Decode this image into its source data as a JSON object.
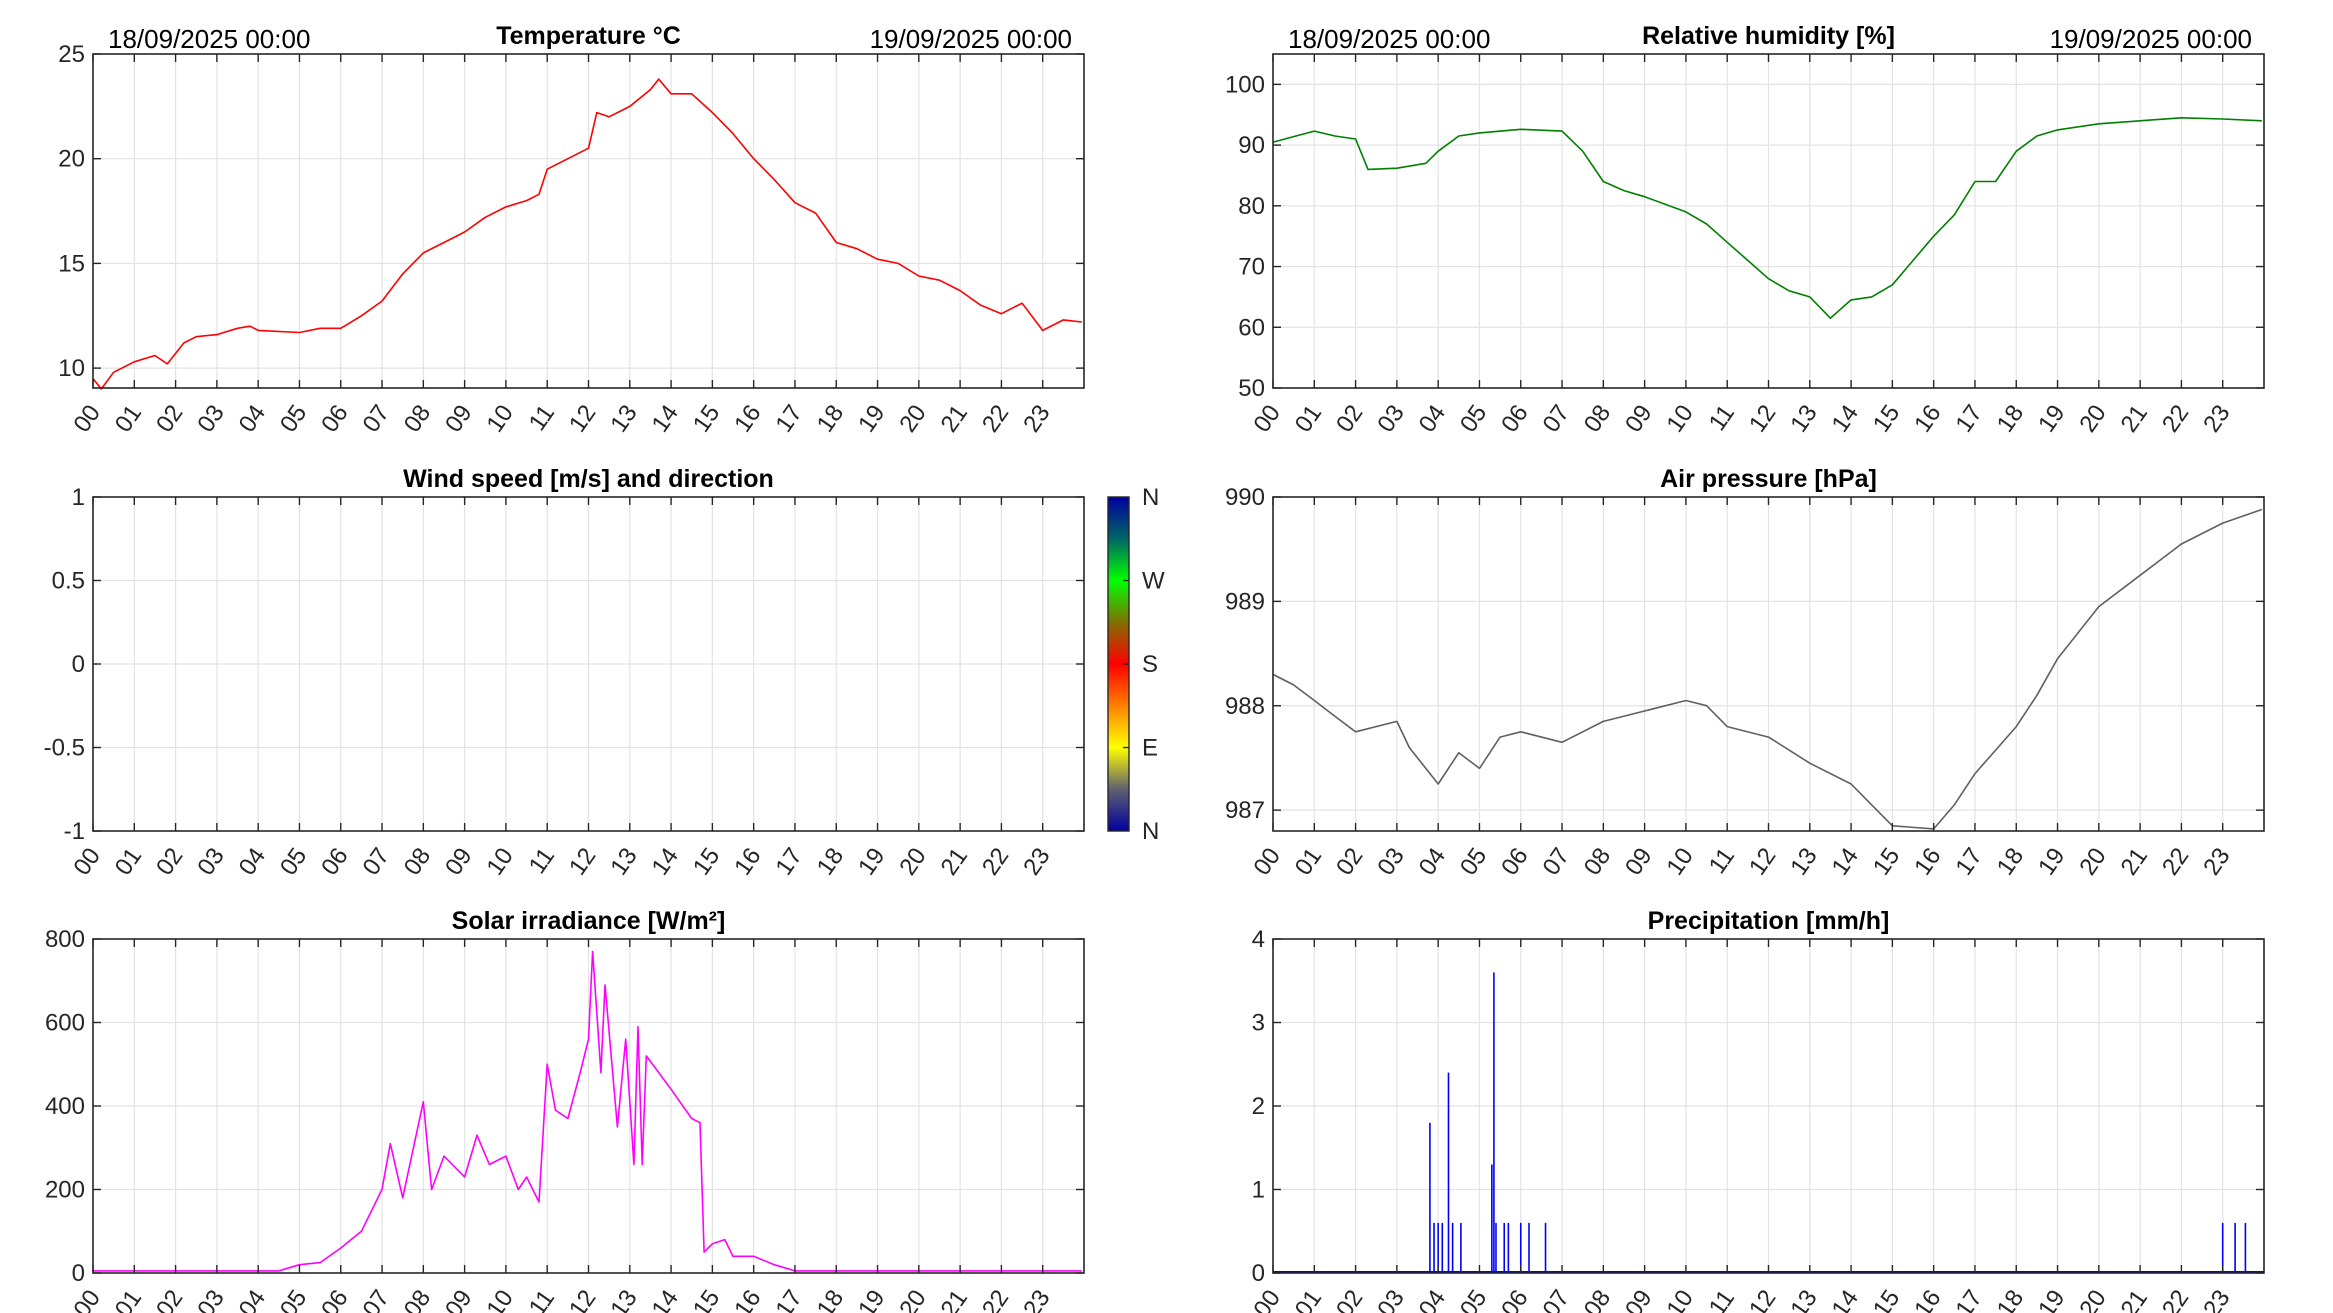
{
  "chart_data": [
    {
      "id": "temperature",
      "type": "line",
      "title": "Temperature °C",
      "date_start": "18/09/2025 00:00",
      "date_end": "19/09/2025 00:00",
      "color": "#ff0000",
      "xlim": [
        0,
        24
      ],
      "ylim": [
        9.05,
        25
      ],
      "yticks": [
        10,
        15,
        20,
        25
      ],
      "x": [
        0,
        0.2,
        0.5,
        1,
        1.5,
        1.8,
        2.2,
        2.5,
        3,
        3.5,
        3.8,
        4,
        5,
        5.5,
        6,
        6.5,
        7,
        7.5,
        8,
        8.5,
        9,
        9.5,
        10,
        10.5,
        10.8,
        11,
        11.5,
        12,
        12.2,
        12.5,
        13,
        13.5,
        13.7,
        14,
        14.5,
        15,
        15.5,
        16,
        16.5,
        17,
        17.5,
        18,
        18.5,
        19,
        19.5,
        20,
        20.5,
        21,
        21.5,
        22,
        22.5,
        23,
        23.5,
        23.95
      ],
      "y": [
        9.5,
        9.0,
        9.8,
        10.3,
        10.6,
        10.2,
        11.2,
        11.5,
        11.6,
        11.9,
        12.0,
        11.8,
        11.7,
        11.9,
        11.9,
        12.5,
        13.2,
        14.5,
        15.5,
        16.0,
        16.5,
        17.2,
        17.7,
        18.0,
        18.3,
        19.5,
        20.0,
        20.5,
        22.2,
        22.0,
        22.5,
        23.3,
        23.8,
        23.1,
        23.1,
        22.2,
        21.2,
        20.0,
        19.0,
        17.9,
        17.4,
        16.0,
        15.7,
        15.2,
        15.0,
        14.4,
        14.2,
        13.7,
        13.0,
        12.6,
        13.1,
        11.8,
        12.3,
        12.2
      ]
    },
    {
      "id": "humidity",
      "type": "line",
      "title": "Relative humidity [%]",
      "date_start": "18/09/2025 00:00",
      "date_end": "19/09/2025 00:00",
      "color": "#007f00",
      "xlim": [
        0,
        24
      ],
      "ylim": [
        50,
        105
      ],
      "yticks": [
        50,
        60,
        70,
        80,
        90,
        100
      ],
      "x": [
        0,
        1,
        1.5,
        2,
        2.3,
        3,
        3.7,
        4,
        4.5,
        5,
        6,
        7,
        7.5,
        8,
        8.5,
        9,
        10,
        10.5,
        11,
        11.5,
        12,
        12.5,
        13,
        13.5,
        14,
        14.5,
        15,
        15.5,
        16,
        16.5,
        17,
        17.5,
        18,
        18.5,
        19,
        20,
        21,
        22,
        23,
        23.95
      ],
      "y": [
        90.5,
        92.3,
        91.5,
        91,
        86,
        86.2,
        87,
        89,
        91.5,
        92,
        92.6,
        92.3,
        89,
        84,
        82.5,
        81.5,
        79,
        77,
        74,
        71,
        68,
        66,
        65,
        61.5,
        64.5,
        65,
        67,
        71,
        75,
        78.5,
        84,
        84,
        89,
        91.5,
        92.5,
        93.5,
        94,
        94.5,
        94.3,
        94
      ]
    },
    {
      "id": "wind",
      "type": "scatter",
      "title": "Wind speed [m/s] and direction",
      "xlim": [
        0,
        24
      ],
      "ylim": [
        -1,
        1
      ],
      "yticks": [
        -1,
        -0.5,
        0,
        0.5,
        1
      ],
      "ytick_labels": [
        "-1",
        "-0.5",
        "0",
        "0.5",
        "1"
      ],
      "x": [],
      "y": [],
      "colorbar": {
        "labels": [
          "N",
          "W",
          "S",
          "E",
          "N"
        ],
        "colors": [
          "#0000a0",
          "#006666",
          "#00ff00",
          "#807000",
          "#ff0000",
          "#ff8000",
          "#ffff00",
          "#606070",
          "#0000a0"
        ]
      }
    },
    {
      "id": "pressure",
      "type": "line",
      "title": "Air pressure [hPa]",
      "color": "#606060",
      "xlim": [
        0,
        24
      ],
      "ylim": [
        986.8,
        990
      ],
      "yticks": [
        987,
        988,
        989,
        990
      ],
      "x": [
        0,
        0.5,
        1,
        1.5,
        2,
        3,
        3.3,
        4,
        4.5,
        5,
        5.5,
        6,
        7,
        8,
        9,
        10,
        10.5,
        11,
        12,
        13,
        14,
        14.5,
        15,
        16,
        16.5,
        17,
        18,
        18.5,
        19,
        20,
        21,
        22,
        23,
        23.95
      ],
      "y": [
        988.3,
        988.2,
        988.05,
        987.9,
        987.75,
        987.85,
        987.6,
        987.25,
        987.55,
        987.4,
        987.7,
        987.75,
        987.65,
        987.85,
        987.95,
        988.05,
        988.0,
        987.8,
        987.7,
        987.45,
        987.25,
        987.05,
        986.85,
        986.82,
        987.05,
        987.35,
        987.8,
        988.1,
        988.45,
        988.95,
        989.25,
        989.55,
        989.75,
        989.88
      ]
    },
    {
      "id": "solar",
      "type": "line",
      "title": "Solar irradiance [W/m²]",
      "color": "#ff00ff",
      "xlim": [
        0,
        24
      ],
      "ylim": [
        0,
        800
      ],
      "yticks": [
        0,
        200,
        400,
        600,
        800
      ],
      "x": [
        0,
        4.5,
        5,
        5.5,
        6,
        6.5,
        7,
        7.2,
        7.5,
        8,
        8.2,
        8.5,
        9,
        9.3,
        9.6,
        10,
        10.3,
        10.5,
        10.8,
        11,
        11.2,
        11.5,
        11.8,
        12,
        12.1,
        12.3,
        12.4,
        12.7,
        12.9,
        13.1,
        13.2,
        13.3,
        13.4,
        14,
        14.5,
        14.7,
        14.8,
        15,
        15.3,
        15.5,
        16,
        16.5,
        17,
        23.95
      ],
      "y": [
        5,
        5,
        20,
        25,
        60,
        100,
        200,
        310,
        180,
        410,
        200,
        280,
        230,
        330,
        260,
        280,
        200,
        230,
        170,
        500,
        390,
        370,
        480,
        560,
        770,
        480,
        690,
        350,
        560,
        260,
        590,
        260,
        520,
        440,
        370,
        360,
        50,
        70,
        80,
        40,
        40,
        20,
        5,
        5
      ]
    },
    {
      "id": "precipitation",
      "type": "line",
      "title": "Precipitation [mm/h]",
      "color": "#0000ff",
      "xlim": [
        0,
        24
      ],
      "ylim": [
        0,
        4
      ],
      "yticks": [
        0,
        1,
        2,
        3,
        4
      ],
      "spikes": [
        [
          3.8,
          1.8
        ],
        [
          3.9,
          0.6
        ],
        [
          4.0,
          0.6
        ],
        [
          4.1,
          0.6
        ],
        [
          4.25,
          2.4
        ],
        [
          4.35,
          0.6
        ],
        [
          4.55,
          0.6
        ],
        [
          5.3,
          1.3
        ],
        [
          5.35,
          3.6
        ],
        [
          5.4,
          0.6
        ],
        [
          5.6,
          0.6
        ],
        [
          5.7,
          0.6
        ],
        [
          6.0,
          0.6
        ],
        [
          6.2,
          0.6
        ],
        [
          6.6,
          0.6
        ],
        [
          23.0,
          0.6
        ],
        [
          23.3,
          0.6
        ],
        [
          23.55,
          0.6
        ]
      ]
    }
  ],
  "xtick_labels": [
    "00",
    "01",
    "02",
    "03",
    "04",
    "05",
    "06",
    "07",
    "08",
    "09",
    "10",
    "11",
    "12",
    "13",
    "14",
    "15",
    "16",
    "17",
    "18",
    "19",
    "20",
    "21",
    "22",
    "23"
  ]
}
